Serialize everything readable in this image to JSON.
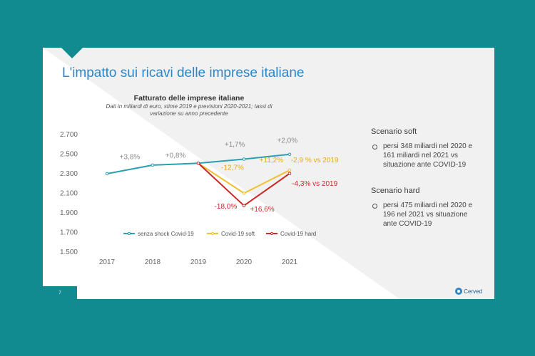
{
  "slide": {
    "title": "L'impatto sui ricavi delle imprese italiane",
    "page_number": "7",
    "logo_text": "Cerved"
  },
  "chart_data": {
    "type": "line",
    "title": "Fatturato delle imprese italiane",
    "subtitle_lines": [
      "Dati in miliardi di euro, stime 2019 e previsioni 2020-2021; tassi di",
      "variazione su anno precedente"
    ],
    "xlabel": "",
    "ylabel": "",
    "categories": [
      "2017",
      "2018",
      "2019",
      "2020",
      "2021"
    ],
    "ylim": [
      1500,
      2700
    ],
    "yticks": [
      "1.500",
      "1.700",
      "1.900",
      "2.100",
      "2.300",
      "2.500",
      "2.700"
    ],
    "series": [
      {
        "name": "senza shock Covid-19",
        "color": "#2a9fb0",
        "x": [
          "2017",
          "2018",
          "2019",
          "2020",
          "2021"
        ],
        "values": [
          2300,
          2388,
          2407,
          2449,
          2498
        ]
      },
      {
        "name": "Covid-19 soft",
        "color": "#f0c030",
        "x": [
          "2019",
          "2020",
          "2021"
        ],
        "values": [
          2407,
          2101,
          2336
        ]
      },
      {
        "name": "Covid-19 hard",
        "color": "#cc2727",
        "x": [
          "2019",
          "2020",
          "2021"
        ],
        "values": [
          2407,
          1974,
          2302
        ]
      }
    ],
    "annotations": [
      {
        "text": "+3,8%",
        "color": "#8a8a8a",
        "x": "2017.5",
        "y": 2450
      },
      {
        "text": "+0,8%",
        "color": "#8a8a8a",
        "x": "2018.5",
        "y": 2465
      },
      {
        "text": "+1,7%",
        "color": "#8a8a8a",
        "x": "2019.8",
        "y": 2575
      },
      {
        "text": "+2,0%",
        "color": "#8a8a8a",
        "x": "2020.95",
        "y": 2615
      },
      {
        "text": "-12,7%",
        "color": "#e8a818",
        "x": "2019.75",
        "y": 2340
      },
      {
        "text": "+11,2%",
        "color": "#e8a818",
        "x": "2020.6",
        "y": 2415
      },
      {
        "text": "-2,9 % vs 2019",
        "color": "#e8a818",
        "x": "2021.55",
        "y": 2415
      },
      {
        "text": "-4,3% vs 2019",
        "color": "#cc2727",
        "x": "2021.55",
        "y": 2175
      },
      {
        "text": "-18,0%",
        "color": "#cc2727",
        "x": "2019.6",
        "y": 1945
      },
      {
        "text": "+16,6%",
        "color": "#cc2727",
        "x": "2020.4",
        "y": 1915
      }
    ],
    "legend_position": "bottom",
    "grid": false
  },
  "sidebar": {
    "soft": {
      "heading": "Scenario soft",
      "bullet_lines": [
        "persi 348 miliardi nel 2020 e",
        "161 miliardi nel 2021 vs",
        "situazione ante COVID-19"
      ]
    },
    "hard": {
      "heading": "Scenario hard",
      "bullet_lines": [
        "persi 475 miliardi nel 2020 e",
        "196 nel 2021 vs situazione",
        "ante COVID-19"
      ]
    }
  },
  "colors": {
    "background": "#118a90",
    "title": "#2f86c6"
  }
}
